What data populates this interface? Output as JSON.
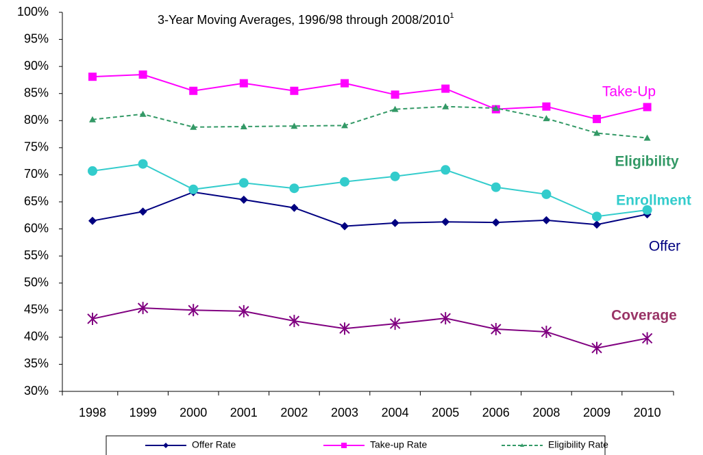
{
  "chart_data": {
    "type": "line",
    "title": "3-Year Moving Averages, 1996/98 through 2008/2010",
    "title_note": "1",
    "categories": [
      "1998",
      "1999",
      "2000",
      "2001",
      "2002",
      "2003",
      "2004",
      "2005",
      "2006",
      "2008",
      "2009",
      "2010"
    ],
    "ylim": [
      30,
      100
    ],
    "yticks": [
      {
        "value": 30,
        "label": "30%"
      },
      {
        "value": 35,
        "label": "35%"
      },
      {
        "value": 40,
        "label": "40%"
      },
      {
        "value": 45,
        "label": "45%"
      },
      {
        "value": 50,
        "label": "50%"
      },
      {
        "value": 55,
        "label": "55%"
      },
      {
        "value": 60,
        "label": "60%"
      },
      {
        "value": 65,
        "label": "65%"
      },
      {
        "value": 70,
        "label": "70%"
      },
      {
        "value": 75,
        "label": "75%"
      },
      {
        "value": 80,
        "label": "80%"
      },
      {
        "value": 85,
        "label": "85%"
      },
      {
        "value": 90,
        "label": "90%"
      },
      {
        "value": 95,
        "label": "95%"
      },
      {
        "value": 100,
        "label": "100%"
      }
    ],
    "grid": false,
    "legend": "bottom",
    "series": [
      {
        "name": "Offer Rate",
        "color": "#000080",
        "marker": "diamond",
        "dash": false,
        "values": [
          61.5,
          63.2,
          66.8,
          65.4,
          63.9,
          60.5,
          61.1,
          61.3,
          61.2,
          61.6,
          60.8,
          62.7
        ]
      },
      {
        "name": "Take-up Rate",
        "color": "#ff00ff",
        "marker": "square",
        "dash": false,
        "values": [
          88.1,
          88.5,
          85.5,
          86.9,
          85.5,
          86.9,
          84.8,
          85.9,
          82.1,
          82.6,
          80.3,
          82.5
        ]
      },
      {
        "name": "Eligibility Rate",
        "color": "#339966",
        "marker": "triangle",
        "dash": true,
        "values": [
          80.2,
          81.2,
          78.8,
          78.9,
          79.0,
          79.1,
          82.1,
          82.6,
          82.3,
          80.4,
          77.7,
          76.8
        ]
      },
      {
        "color": "#33cccc",
        "marker": "circle",
        "dash": false,
        "values": [
          70.7,
          72.0,
          67.3,
          68.5,
          67.5,
          68.7,
          69.7,
          70.9,
          67.7,
          66.4,
          62.3,
          63.5
        ]
      },
      {
        "color": "#800080",
        "marker": "star",
        "dash": false,
        "values": [
          43.4,
          45.4,
          45.0,
          44.8,
          43.0,
          41.6,
          42.5,
          43.5,
          41.5,
          41.0,
          38.0,
          39.8
        ]
      }
    ],
    "annotations": [
      {
        "text": "Take-Up",
        "color": "#ff00ff",
        "bold": false
      },
      {
        "text": "Eligibility",
        "color": "#339966",
        "bold": true
      },
      {
        "text": "Enrollment",
        "color": "#33cccc",
        "bold": true
      },
      {
        "text": "Offer",
        "color": "#000080",
        "bold": false
      },
      {
        "text": "Coverage",
        "color": "#993366",
        "bold": true
      }
    ]
  }
}
